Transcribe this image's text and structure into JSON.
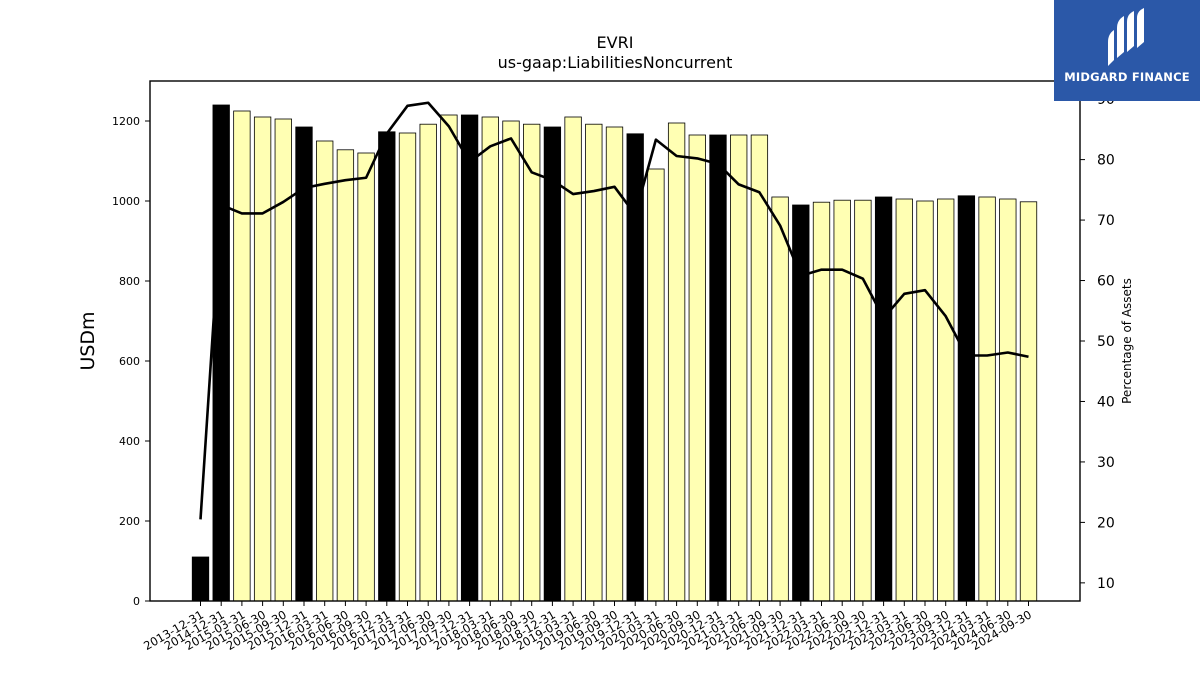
{
  "brand": {
    "name": "MIDGARD FINANCE",
    "bg_color": "#2b58a8"
  },
  "chart_data": {
    "type": "bar",
    "title": "EVRI",
    "subtitle": "us-gaap:LiabilitiesNoncurrent",
    "ylabel": "USDm",
    "y2label": "Percentage of Assets",
    "ylim": [
      0,
      1300
    ],
    "y2lim": [
      7,
      93
    ],
    "yticks": [
      0,
      200,
      400,
      600,
      800,
      1000,
      1200
    ],
    "y2ticks": [
      10,
      20,
      30,
      40,
      50,
      60,
      70,
      80,
      90
    ],
    "categories": [
      "2013-12-31",
      "2014-12-31",
      "2015-03-31",
      "2015-06-30",
      "2015-09-30",
      "2015-12-31",
      "2016-03-31",
      "2016-06-30",
      "2016-09-30",
      "2016-12-31",
      "2017-03-31",
      "2017-06-30",
      "2017-09-30",
      "2017-12-31",
      "2018-03-31",
      "2018-06-30",
      "2018-09-30",
      "2018-12-31",
      "2019-03-31",
      "2019-06-30",
      "2019-09-30",
      "2019-12-31",
      "2020-03-31",
      "2020-06-30",
      "2020-09-30",
      "2020-12-31",
      "2021-03-31",
      "2021-06-30",
      "2021-09-30",
      "2021-12-31",
      "2022-03-31",
      "2022-06-30",
      "2022-09-30",
      "2022-12-31",
      "2023-03-31",
      "2023-06-30",
      "2023-09-30",
      "2023-12-31",
      "2024-03-31",
      "2024-06-30",
      "2024-09-30"
    ],
    "series": [
      {
        "kind": "bar",
        "axis": "left",
        "values": [
          110,
          1240,
          1225,
          1210,
          1205,
          1185,
          1150,
          1128,
          1120,
          1173,
          1170,
          1192,
          1215,
          1215,
          1210,
          1200,
          1192,
          1185,
          1210,
          1192,
          1185,
          1168,
          1080,
          1195,
          1165,
          1165,
          1165,
          1165,
          1010,
          990,
          997,
          1002,
          1002,
          1010,
          1005,
          1000,
          1005,
          1013,
          1010,
          1005,
          998
        ],
        "year_end_color": "#000000",
        "quarter_color": "#ffffb3"
      },
      {
        "kind": "line",
        "axis": "right",
        "color": "#000000",
        "values": [
          20.5,
          72.5,
          71.1,
          71.1,
          73.0,
          75.3,
          76.0,
          76.6,
          77.0,
          84.3,
          88.9,
          89.4,
          85.5,
          79.6,
          82.2,
          83.5,
          77.9,
          76.6,
          74.3,
          74.8,
          75.5,
          70.9,
          83.3,
          80.6,
          80.2,
          79.3,
          75.9,
          74.6,
          69.1,
          60.8,
          61.8,
          61.8,
          60.3,
          53.8,
          57.8,
          58.4,
          54.1,
          47.6,
          47.6,
          48.1,
          47.4
        ]
      }
    ],
    "grid": false
  }
}
